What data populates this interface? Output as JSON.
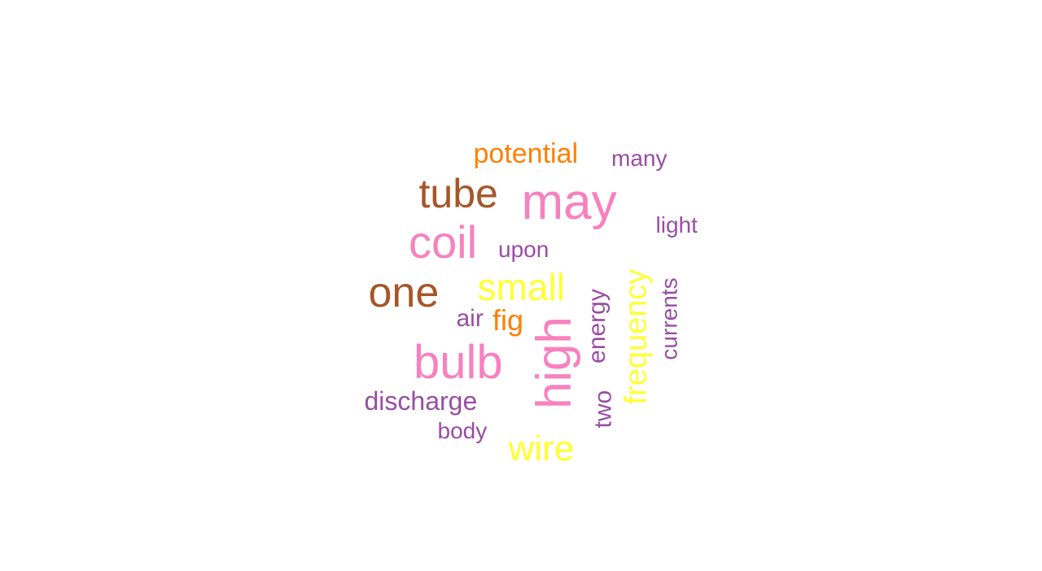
{
  "palette": {
    "pink": "#f781bf",
    "brown": "#a65628",
    "orange": "#ff7f00",
    "purple": "#984ea3",
    "yellow": "#ffff33"
  },
  "words": [
    {
      "text": "may",
      "color": "pink"
    },
    {
      "text": "tube",
      "color": "brown"
    },
    {
      "text": "potential",
      "color": "orange"
    },
    {
      "text": "many",
      "color": "purple"
    },
    {
      "text": "light",
      "color": "purple"
    },
    {
      "text": "coil",
      "color": "pink"
    },
    {
      "text": "upon",
      "color": "purple"
    },
    {
      "text": "one",
      "color": "brown"
    },
    {
      "text": "small",
      "color": "yellow"
    },
    {
      "text": "air",
      "color": "purple"
    },
    {
      "text": "fig",
      "color": "orange"
    },
    {
      "text": "high",
      "color": "pink",
      "orientation": "vertical"
    },
    {
      "text": "energy",
      "color": "purple",
      "orientation": "vertical"
    },
    {
      "text": "frequency",
      "color": "yellow",
      "orientation": "vertical"
    },
    {
      "text": "currents",
      "color": "purple",
      "orientation": "vertical"
    },
    {
      "text": "bulb",
      "color": "pink"
    },
    {
      "text": "discharge",
      "color": "purple"
    },
    {
      "text": "two",
      "color": "purple",
      "orientation": "vertical"
    },
    {
      "text": "body",
      "color": "purple"
    },
    {
      "text": "wire",
      "color": "yellow"
    }
  ]
}
